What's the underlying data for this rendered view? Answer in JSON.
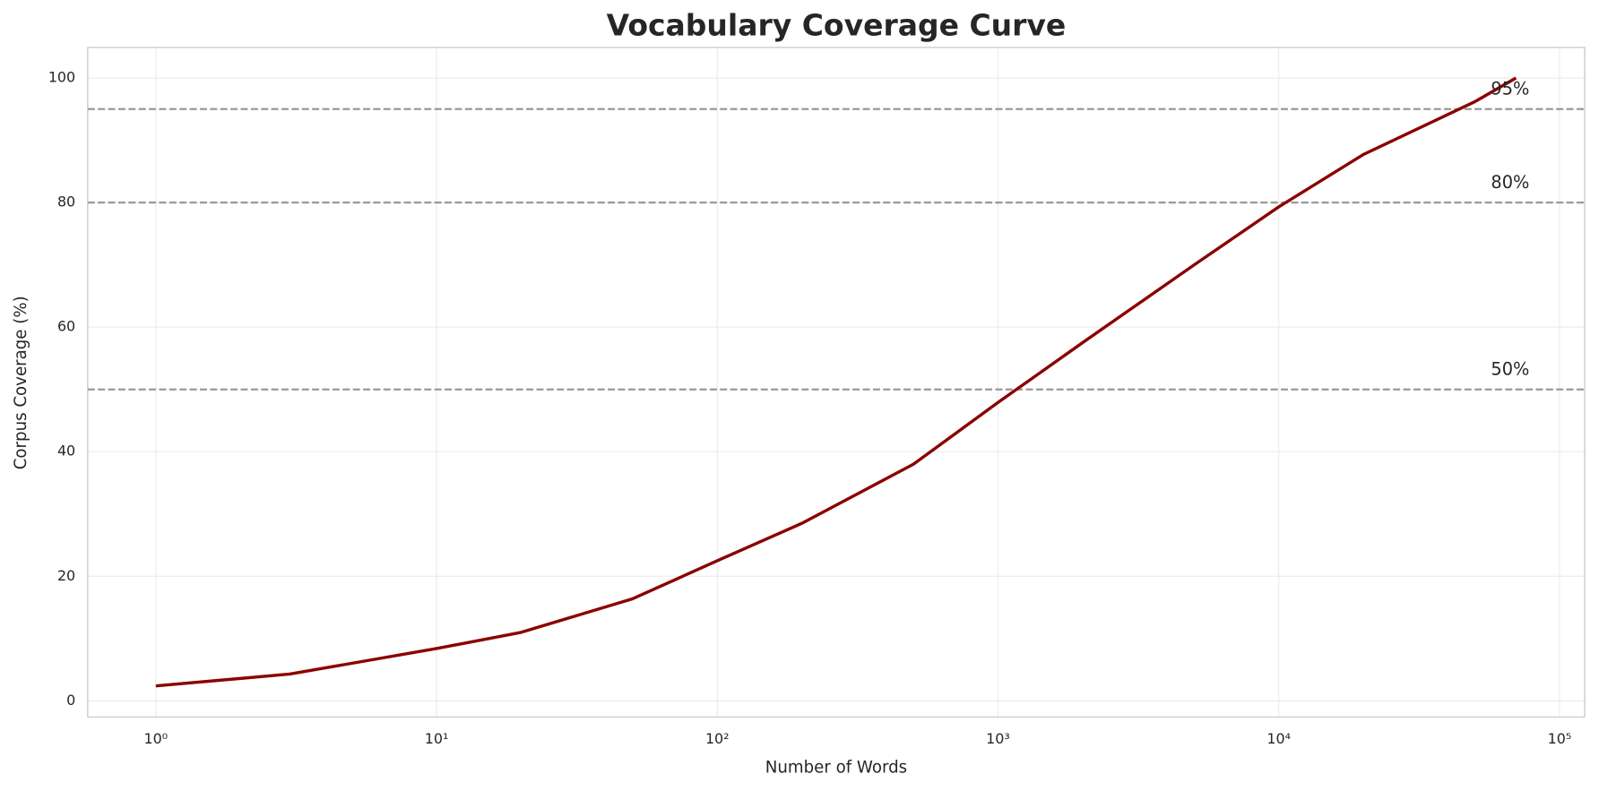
{
  "chart_data": {
    "type": "line",
    "title": "Vocabulary Coverage Curve",
    "x_label": "Number of Words",
    "y_label": "Corpus Coverage (%)",
    "x": [
      1,
      3,
      10,
      20,
      50,
      100,
      200,
      500,
      1000,
      2000,
      5000,
      10000,
      20000,
      50000,
      70000
    ],
    "series": [
      {
        "name": "Coverage",
        "color": "#8b0000",
        "values": [
          2.4,
          4.3,
          8.4,
          11,
          16.4,
          22.5,
          28.5,
          38,
          47.9,
          57.5,
          70,
          79.3,
          87.7,
          96.2,
          100
        ]
      }
    ],
    "xscale": "log",
    "xlim": [
      0.572,
      123000
    ],
    "xticks": [
      {
        "value": 1,
        "label": "10⁰"
      },
      {
        "value": 10,
        "label": "10¹"
      },
      {
        "value": 100,
        "label": "10²"
      },
      {
        "value": 1000,
        "label": "10³"
      },
      {
        "value": 10000,
        "label": "10⁴"
      },
      {
        "value": 100000,
        "label": "10⁵"
      }
    ],
    "ylim": [
      -2.6,
      104.9
    ],
    "yticks": [
      0,
      20,
      40,
      60,
      80,
      100
    ],
    "grid": true,
    "reference_lines": [
      {
        "value": 95,
        "label": "95%"
      },
      {
        "value": 80,
        "label": "80%"
      },
      {
        "value": 50,
        "label": "50%"
      }
    ],
    "reference_color": "#999999"
  }
}
